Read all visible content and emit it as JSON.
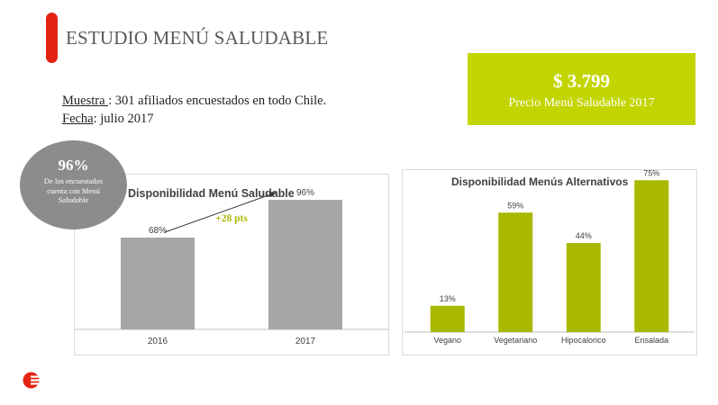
{
  "header": {
    "title": "ESTUDIO MENÚ SALUDABLE"
  },
  "info": {
    "sample_label": "Muestra ",
    "sample_text": ": 301 afiliados encuestados en todo Chile.",
    "date_label": "Fecha",
    "date_text": ": julio 2017"
  },
  "price_box": {
    "value": "$ 3.799",
    "label": "Precio Menú Saludable 2017"
  },
  "highlight_circle": {
    "value": "96%",
    "text": "De los encuestados cuenta con Menú Saludable"
  },
  "colors": {
    "accent": "#e42313",
    "lime": "#c2d500",
    "olive_bar": "#a9b800",
    "gray_bar": "#a6a6a6",
    "circle": "#8c8c8c"
  },
  "logo": {
    "icon": "red-brand-logo-icon"
  },
  "chart_data": [
    {
      "type": "bar",
      "title": "Disponibilidad Menú Saludable",
      "categories": [
        "2016",
        "2017"
      ],
      "values": [
        68,
        96
      ],
      "value_labels": [
        "68%",
        "96%"
      ],
      "ylim": [
        0,
        100
      ],
      "grid": false,
      "color": "#a6a6a6",
      "annotation": "+28 pts"
    },
    {
      "type": "bar",
      "title": "Disponibilidad Menús Alternativos",
      "categories": [
        "Vegano",
        "Vegetariano",
        "Hipocalorico",
        "Ensalada"
      ],
      "values": [
        13,
        59,
        44,
        75
      ],
      "value_labels": [
        "13%",
        "59%",
        "44%",
        "75%"
      ],
      "ylim": [
        0,
        80
      ],
      "grid": false,
      "color": "#a9b800"
    }
  ]
}
